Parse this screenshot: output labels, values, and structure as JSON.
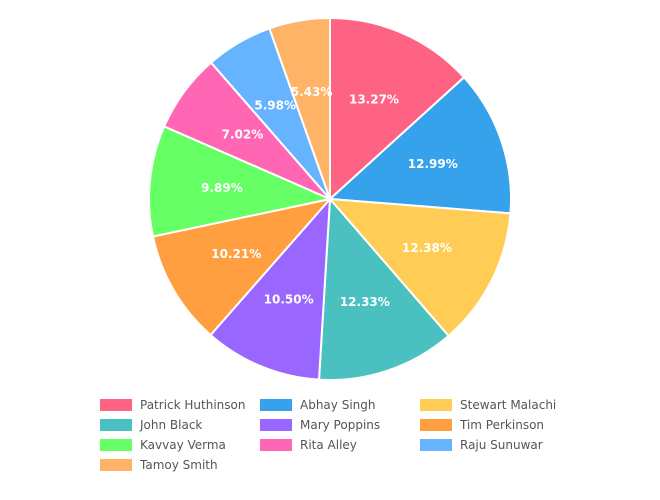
{
  "chart_data": {
    "type": "pie",
    "categories": [
      "Patrick Huthinson",
      "Abhay Singh",
      "Stewart Malachi",
      "John Black",
      "Mary Poppins",
      "Tim Perkinson",
      "Kavvay Verma",
      "Rita Alley",
      "Raju Sunuwar",
      "Tamoy Smith"
    ],
    "values": [
      13.27,
      12.99,
      12.38,
      12.33,
      10.5,
      10.21,
      9.89,
      7.02,
      5.98,
      5.43
    ],
    "labels": [
      "13.27%",
      "12.99%",
      "12.38%",
      "12.33%",
      "10.50%",
      "10.21%",
      "9.89%",
      "7.02%",
      "5.98%",
      "5.43%"
    ],
    "colors": [
      "#ff6384",
      "#36a2eb",
      "#ffcd56",
      "#4bc0c0",
      "#9966ff",
      "#ff9f40",
      "#66ff66",
      "#ff66b3",
      "#66b3ff",
      "#ffb366"
    ],
    "legend_position": "bottom"
  }
}
